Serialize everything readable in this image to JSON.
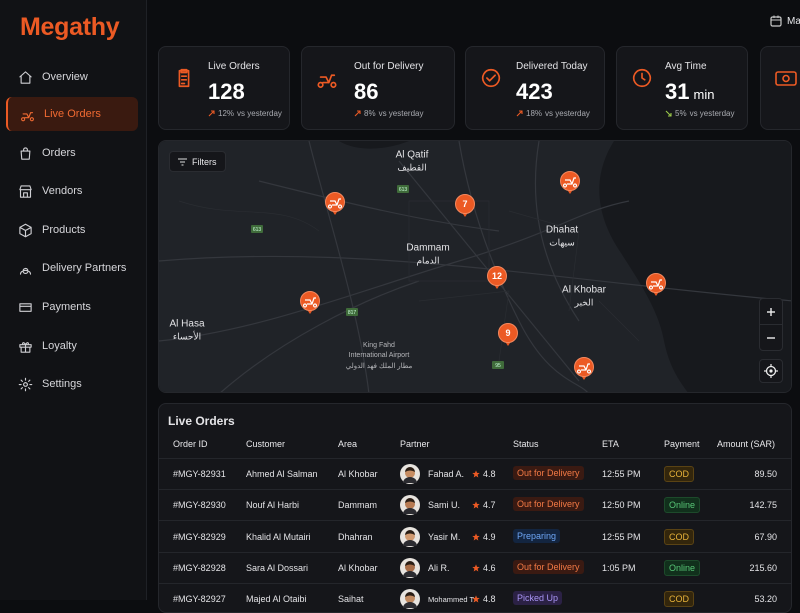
{
  "brand": "Megathy",
  "nav": [
    "Overview",
    "Live Orders",
    "Orders",
    "Vendors",
    "Products",
    "Delivery Partners",
    "Payments",
    "Loyalty",
    "Settings"
  ],
  "header": {
    "date": "Ma"
  },
  "kpis": [
    {
      "label": "Live Orders",
      "value": "128",
      "change": "12%",
      "note": "vs yesterday"
    },
    {
      "label": "Out for Delivery",
      "value": "86",
      "change": "8%",
      "note": "vs yesterday"
    },
    {
      "label": "Delivered Today",
      "value": "423",
      "change": "18%",
      "note": "vs yesterday"
    },
    {
      "label": "Avg Time",
      "value": "31",
      "unit": "min",
      "change": "5%",
      "note": "vs yesterday"
    }
  ],
  "map": {
    "filters": "Filters",
    "places": [
      {
        "name": "Al Qatif",
        "name_ar": "القطيف"
      },
      {
        "name": "Dammam",
        "name_ar": "الدمام"
      },
      {
        "name": "Dhahat",
        "name_ar": "سيهات"
      },
      {
        "name": "Al Khobar",
        "name_ar": "الخبر"
      },
      {
        "name": "Al Hasa",
        "name_ar": "الأحساء"
      }
    ],
    "airport": [
      "King Fahd",
      "International Airport",
      "مطار الملك فهد الدولي"
    ],
    "roads": [
      "613",
      "613",
      "817",
      "95"
    ],
    "clusters": [
      "7",
      "12",
      "9"
    ]
  },
  "table": {
    "title": "Live Orders",
    "columns": [
      "Order ID",
      "Customer",
      "Area",
      "Partner",
      "Status",
      "ETA",
      "Payment",
      "Amount (SAR)"
    ],
    "rows": [
      {
        "id": "#MGY-82931",
        "customer": "Ahmed Al Salman",
        "area": "Al Khobar",
        "partner": "Fahad A.",
        "rating": "4.8",
        "status": "Out for Delivery",
        "eta": "12:55 PM",
        "payment": "COD",
        "amount": "89.50"
      },
      {
        "id": "#MGY-82930",
        "customer": "Nouf Al Harbi",
        "area": "Dammam",
        "partner": "Sami U.",
        "rating": "4.7",
        "status": "Out for Delivery",
        "eta": "12:50 PM",
        "payment": "Online",
        "amount": "142.75"
      },
      {
        "id": "#MGY-82929",
        "customer": "Khalid Al Mutairi",
        "area": "Dhahran",
        "partner": "Yasir M.",
        "rating": "4.9",
        "status": "Preparing",
        "eta": "12:55 PM",
        "payment": "COD",
        "amount": "67.90"
      },
      {
        "id": "#MGY-82928",
        "customer": "Sara Al Dossari",
        "area": "Al Khobar",
        "partner": "Ali R.",
        "rating": "4.6",
        "status": "Out for Delivery",
        "eta": "1:05 PM",
        "payment": "Online",
        "amount": "215.60"
      },
      {
        "id": "#MGY-82927",
        "customer": "Majed Al Otaibi",
        "area": "Saihat",
        "partner": "Mohammed T.",
        "rating": "4.8",
        "status": "Picked Up",
        "payment": "COD",
        "amount": "53.20"
      }
    ]
  }
}
